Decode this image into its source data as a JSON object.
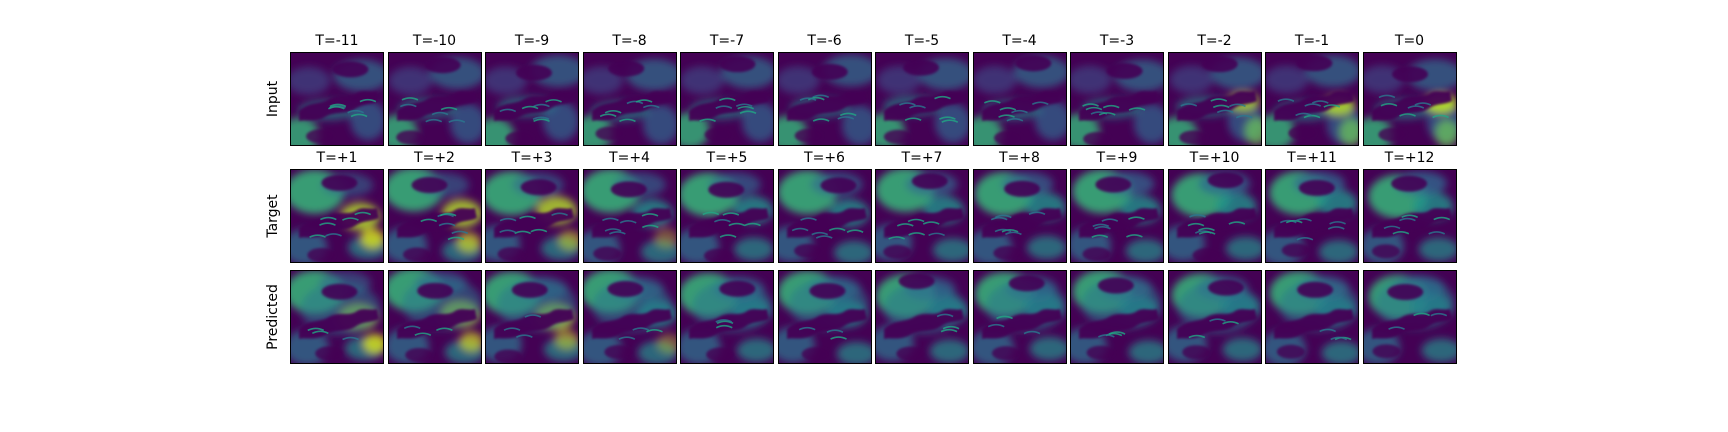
{
  "figure": {
    "rows": [
      {
        "label": "Input",
        "colormap": "viridis",
        "titles": [
          "T=-11",
          "T=-10",
          "T=-9",
          "T=-8",
          "T=-7",
          "T=-6",
          "T=-5",
          "T=-4",
          "T=-3",
          "T=-2",
          "T=-1",
          "T=0"
        ]
      },
      {
        "label": "Target",
        "colormap": "viridis",
        "titles": [
          "T=+1",
          "T=+2",
          "T=+3",
          "T=+4",
          "T=+5",
          "T=+6",
          "T=+7",
          "T=+8",
          "T=+9",
          "T=+10",
          "T=+11",
          "T=+12"
        ]
      },
      {
        "label": "Predicted",
        "colormap": "viridis",
        "titles": []
      }
    ],
    "colors": {
      "viridis_dark": "#440154",
      "viridis_mid": "#21918c",
      "viridis_bright": "#fde725"
    }
  }
}
